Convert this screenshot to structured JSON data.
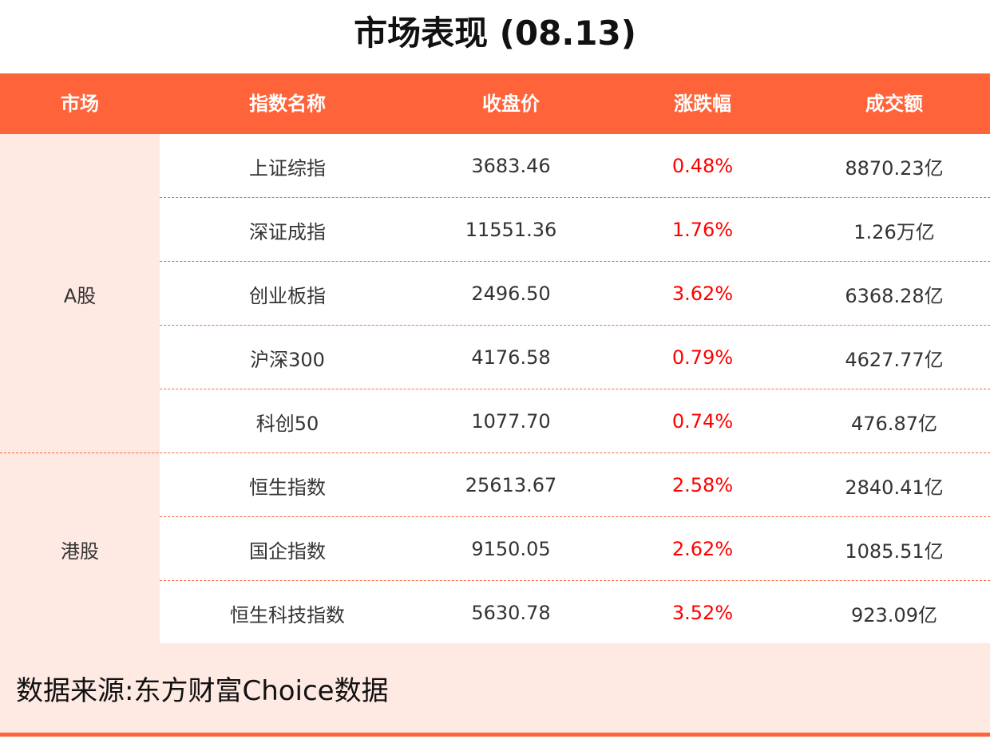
{
  "title": "市场表现 (08.13)",
  "headers": [
    "市场",
    "指数名称",
    "收盘价",
    "涨跌幅",
    "成交额"
  ],
  "colors": {
    "header": "#ff6339",
    "group_bg": "#fee9e3",
    "change": "#ff0000"
  },
  "groups": [
    {
      "market": "A股",
      "rows": [
        {
          "name": "上证综指",
          "close": "3683.46",
          "change": "0.48%",
          "volume": "8870.23亿"
        },
        {
          "name": "深证成指",
          "close": "11551.36",
          "change": "1.76%",
          "volume": "1.26万亿"
        },
        {
          "name": "创业板指",
          "close": "2496.50",
          "change": "3.62%",
          "volume": "6368.28亿"
        },
        {
          "name": "沪深300",
          "close": "4176.58",
          "change": "0.79%",
          "volume": "4627.77亿"
        },
        {
          "name": "科创50",
          "close": "1077.70",
          "change": "0.74%",
          "volume": "476.87亿"
        }
      ]
    },
    {
      "market": "港股",
      "rows": [
        {
          "name": "恒生指数",
          "close": "25613.67",
          "change": "2.58%",
          "volume": "2840.41亿"
        },
        {
          "name": "国企指数",
          "close": "9150.05",
          "change": "2.62%",
          "volume": "1085.51亿"
        },
        {
          "name": "恒生科技指数",
          "close": "5630.78",
          "change": "3.52%",
          "volume": "923.09亿"
        }
      ]
    }
  ],
  "footer": "数据来源:东方财富Choice数据"
}
